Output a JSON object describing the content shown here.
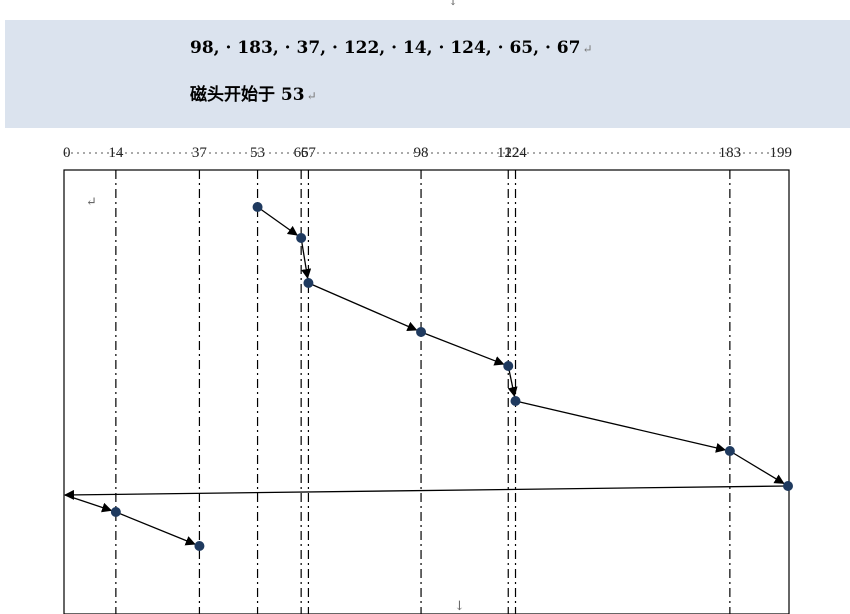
{
  "document": {
    "top_mark": "↓",
    "request_sequence_text": "98, · 183, · 37, · 122, · 14, · 124, · 65, · 67",
    "start_text": "磁头开始于 53",
    "line_end_mark": "↵",
    "bottom_mark": "↓",
    "inner_mark": "↵"
  },
  "chart_data": {
    "type": "line",
    "axis_ticks": [
      "0",
      "14",
      "37",
      "53",
      "65",
      "67",
      "98",
      "122",
      "124",
      "183",
      "199"
    ],
    "tick_values": [
      0,
      14,
      37,
      53,
      65,
      67,
      98,
      122,
      124,
      183,
      199
    ],
    "xlim": [
      0,
      199
    ],
    "dashed_gridlines_at": [
      14,
      37,
      53,
      65,
      67,
      98,
      122,
      124,
      183
    ],
    "head_start": 53,
    "service_order": [
      53,
      65,
      67,
      98,
      122,
      124,
      183,
      199,
      0,
      14,
      37
    ],
    "return_sweep": [
      199,
      0
    ],
    "marker_color": "#1f3a5f",
    "line_color": "#000000"
  }
}
